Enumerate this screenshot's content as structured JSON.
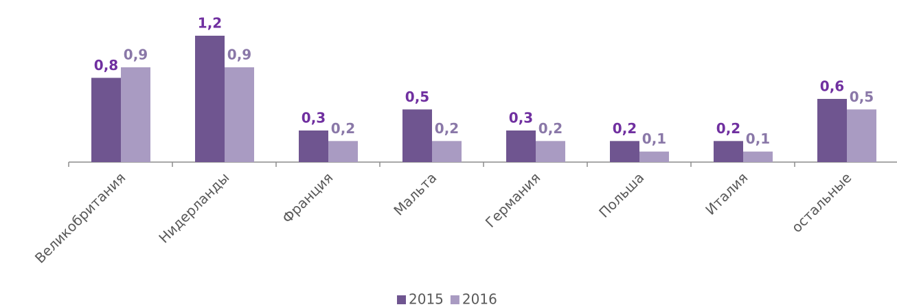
{
  "chart_data": {
    "type": "bar",
    "categories": [
      "Великобритания",
      "Нидерланды",
      "Франция",
      "Мальта",
      "Германия",
      "Польша",
      "Италия",
      "остальные"
    ],
    "series": [
      {
        "name": "2015",
        "color": "#6f5590",
        "label_color": "#7030a0",
        "values": [
          0.8,
          1.2,
          0.3,
          0.5,
          0.3,
          0.2,
          0.2,
          0.6
        ],
        "value_labels": [
          "0,8",
          "1,2",
          "0,3",
          "0,5",
          "0,3",
          "0,2",
          "0,2",
          "0,6"
        ]
      },
      {
        "name": "2016",
        "color": "#a99bc2",
        "label_color": "#8a78a8",
        "values": [
          0.9,
          0.9,
          0.2,
          0.2,
          0.2,
          0.1,
          0.1,
          0.5
        ],
        "value_labels": [
          "0,9",
          "0,9",
          "0,2",
          "0,2",
          "0,2",
          "0,1",
          "0,1",
          "0,5"
        ]
      }
    ],
    "legend": "bottom"
  }
}
